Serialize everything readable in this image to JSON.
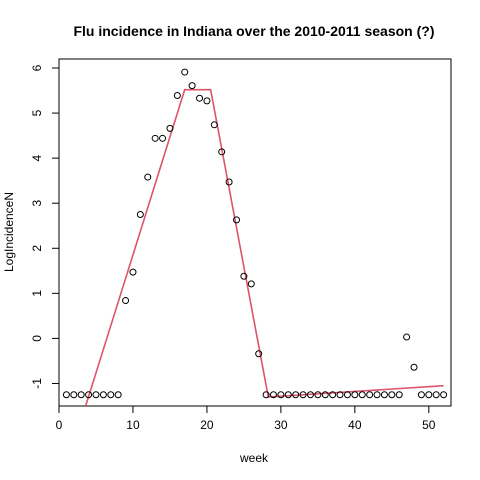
{
  "chart_data": {
    "type": "scatter",
    "title": "Flu incidence in Indiana over the 2010-2011 season (?)",
    "xlabel": "week",
    "ylabel": "LogIncidenceN",
    "xlim": [
      0,
      53
    ],
    "ylim": [
      -1.5,
      6.2
    ],
    "xticks": [
      0,
      10,
      20,
      30,
      40,
      50
    ],
    "yticks": [
      -1,
      0,
      1,
      2,
      3,
      4,
      5,
      6
    ],
    "grid": false,
    "legend": "none",
    "colors": {
      "points": "#000000",
      "fit": "#DF536B"
    },
    "points": {
      "x": [
        1,
        2,
        3,
        4,
        5,
        6,
        7,
        8,
        9,
        10,
        11,
        12,
        13,
        14,
        15,
        16,
        17,
        18,
        19,
        20,
        21,
        22,
        23,
        24,
        25,
        26,
        27,
        28,
        29,
        30,
        31,
        32,
        33,
        34,
        35,
        36,
        37,
        38,
        39,
        40,
        41,
        42,
        43,
        44,
        45,
        46,
        47,
        48,
        49,
        50,
        51,
        52
      ],
      "y": [
        -1.25,
        -1.25,
        -1.25,
        -1.25,
        -1.25,
        -1.25,
        -1.25,
        -1.25,
        0.84,
        1.47,
        2.75,
        3.58,
        4.44,
        4.44,
        4.66,
        5.39,
        5.91,
        5.61,
        5.33,
        5.27,
        4.74,
        4.14,
        3.47,
        2.63,
        1.38,
        1.21,
        -0.34,
        -1.25,
        -1.25,
        -1.25,
        -1.25,
        -1.25,
        -1.25,
        -1.25,
        -1.25,
        -1.25,
        -1.25,
        -1.25,
        -1.25,
        -1.25,
        -1.25,
        -1.25,
        -1.25,
        -1.25,
        -1.25,
        -1.25,
        0.03,
        -0.64,
        -1.25,
        -1.25,
        -1.25,
        -1.25
      ]
    },
    "fit_line": {
      "x": [
        3.6,
        17.0,
        20.5,
        28.3,
        52.0
      ],
      "y": [
        -1.5,
        5.52,
        5.52,
        -1.3,
        -1.05
      ]
    }
  }
}
